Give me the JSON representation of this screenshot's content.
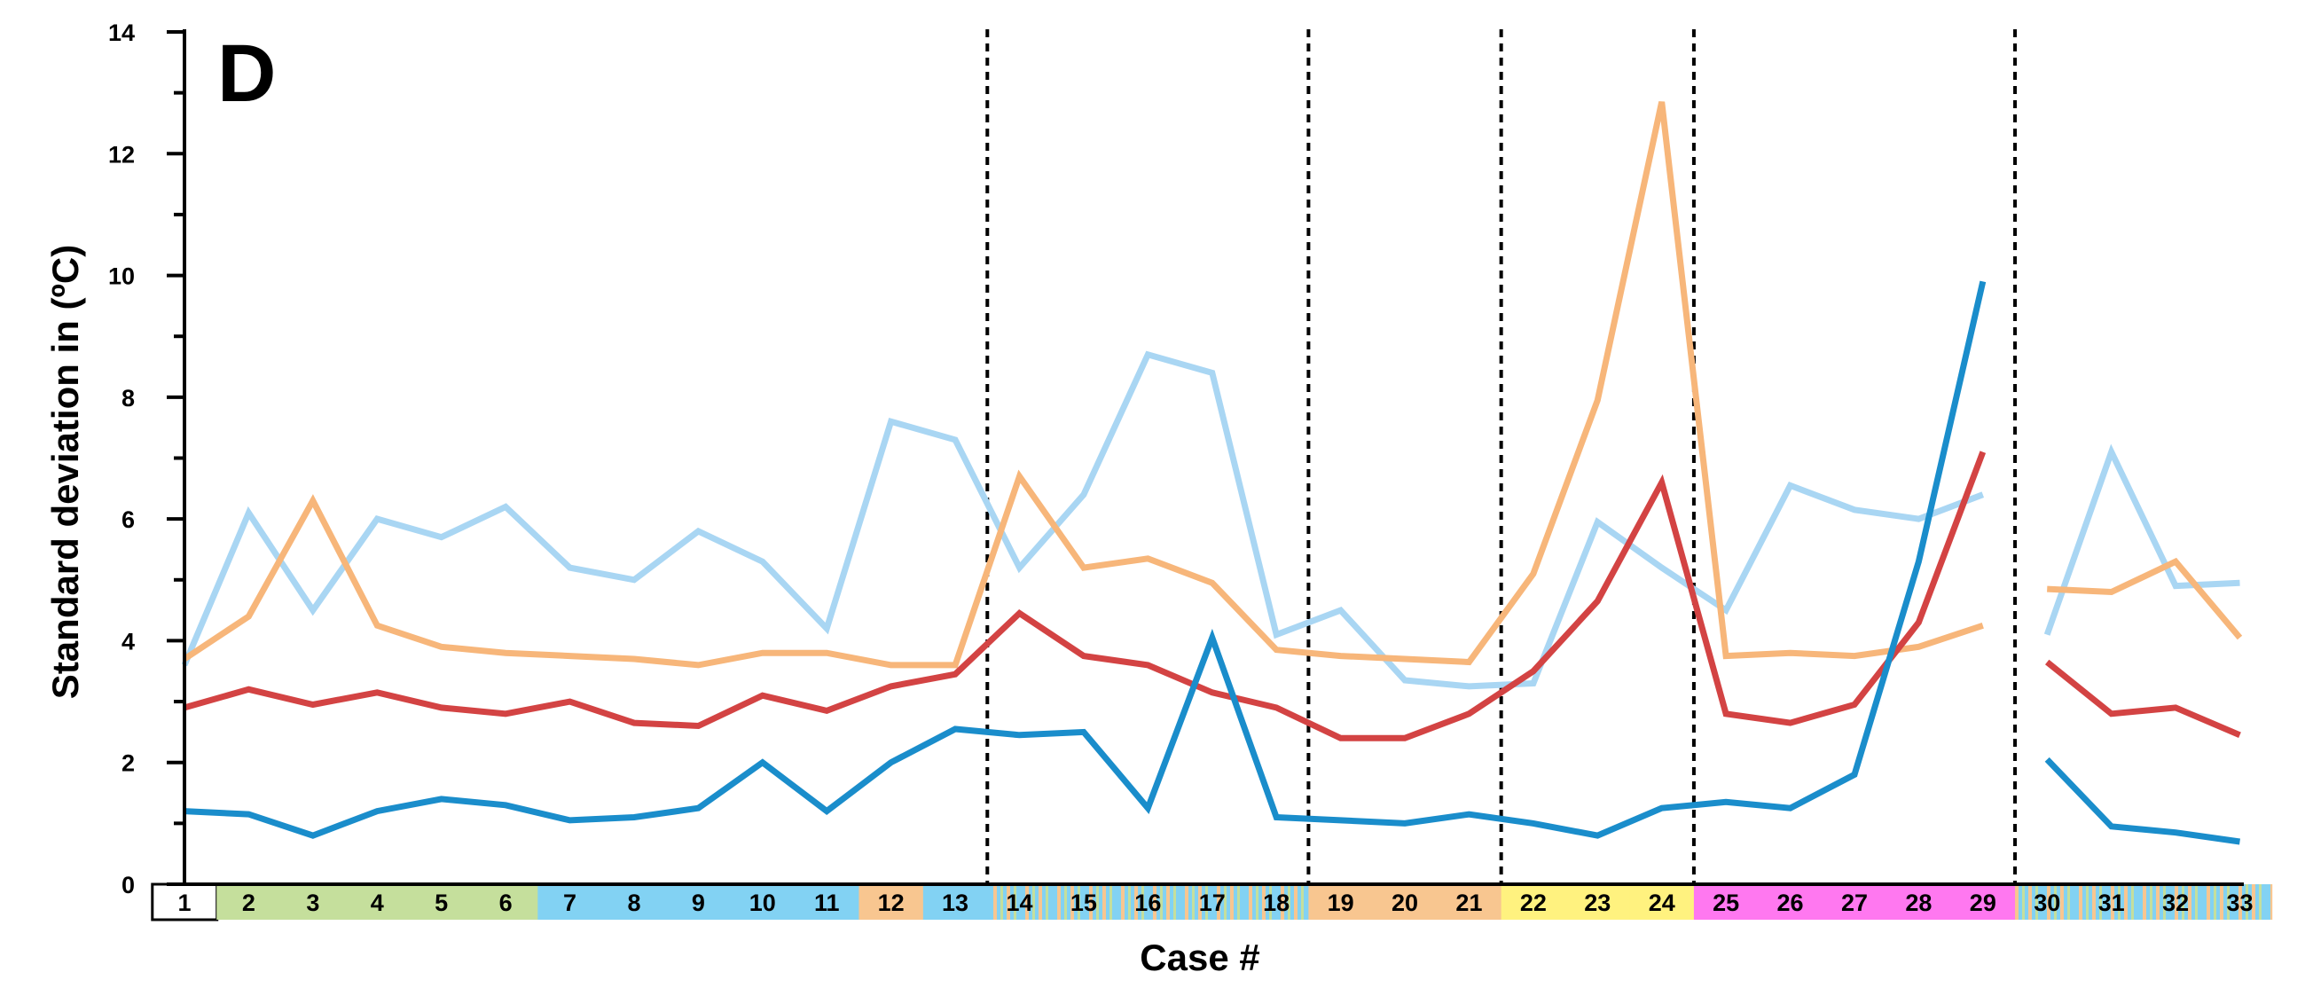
{
  "chart_data": {
    "type": "line",
    "panel_label": "D",
    "xlabel": "Case #",
    "ylabel": "Standard deviation in (ºC)",
    "ylim": [
      0,
      14
    ],
    "yticks": [
      0,
      2,
      4,
      6,
      8,
      10,
      12,
      14
    ],
    "grid": false,
    "legend": "none",
    "categories": [
      "1",
      "2",
      "3",
      "4",
      "5",
      "6",
      "7",
      "8",
      "9",
      "10",
      "11",
      "12",
      "13",
      "14",
      "15",
      "16",
      "17",
      "18",
      "19",
      "20",
      "21",
      "22",
      "23",
      "24",
      "25",
      "26",
      "27",
      "28",
      "29",
      "30",
      "31",
      "32",
      "33"
    ],
    "category_colors": [
      "#ffffff",
      "#c5df9c",
      "#c5df9c",
      "#c5df9c",
      "#c5df9c",
      "#c5df9c",
      "#82d2f3",
      "#82d2f3",
      "#82d2f3",
      "#82d2f3",
      "#82d2f3",
      "#f8c690",
      "#82d2f3",
      "striped",
      "striped",
      "striped",
      "striped",
      "striped",
      "#f8c690",
      "#f8c690",
      "#f8c690",
      "#fff27f",
      "#fff27f",
      "#fff27f",
      "#ff78f0",
      "#ff78f0",
      "#ff78f0",
      "#ff78f0",
      "#ff78f0",
      "striped",
      "striped",
      "striped",
      "striped"
    ],
    "group_separators_after_case": [
      13.5,
      18.5,
      21.5,
      24.5,
      29.5
    ],
    "series": [
      {
        "color": "#a9d6f3",
        "values": [
          3.6,
          6.1,
          4.5,
          6.0,
          5.7,
          6.2,
          5.2,
          5.0,
          5.8,
          5.3,
          4.2,
          7.6,
          7.3,
          5.2,
          6.4,
          8.7,
          8.4,
          4.1,
          4.5,
          3.35,
          3.25,
          3.3,
          5.95,
          5.2,
          4.5,
          6.55,
          6.15,
          6.0,
          6.4,
          4.1,
          7.1,
          4.9,
          4.95
        ],
        "break_after_index": 28
      },
      {
        "color": "#f7b67a",
        "values": [
          3.7,
          4.4,
          6.3,
          4.25,
          3.9,
          3.8,
          3.75,
          3.7,
          3.6,
          3.8,
          3.8,
          3.6,
          3.6,
          6.7,
          5.2,
          5.35,
          4.95,
          3.85,
          3.75,
          3.7,
          3.65,
          5.1,
          7.95,
          12.85,
          3.75,
          3.8,
          3.75,
          3.9,
          4.25,
          4.85,
          4.8,
          5.3,
          4.05
        ],
        "break_after_index": 28
      },
      {
        "color": "#d34343",
        "values": [
          2.9,
          3.2,
          2.95,
          3.15,
          2.9,
          2.8,
          3.0,
          2.65,
          2.6,
          3.1,
          2.85,
          3.25,
          3.45,
          4.45,
          3.75,
          3.6,
          3.15,
          2.9,
          2.4,
          2.4,
          2.8,
          3.5,
          4.65,
          6.6,
          2.8,
          2.65,
          2.95,
          4.3,
          7.1,
          3.65,
          2.8,
          2.9,
          2.45
        ],
        "break_after_index": 28
      },
      {
        "color": "#1a8dcb",
        "values": [
          1.2,
          1.15,
          0.8,
          1.2,
          1.4,
          1.3,
          1.05,
          1.1,
          1.25,
          2.0,
          1.2,
          2.0,
          2.55,
          2.45,
          2.5,
          1.25,
          4.05,
          1.1,
          1.05,
          1.0,
          1.15,
          1.0,
          0.8,
          1.25,
          1.35,
          1.25,
          1.8,
          5.3,
          9.9,
          2.05,
          0.95,
          0.85,
          0.7
        ],
        "break_after_index": 28
      }
    ]
  }
}
